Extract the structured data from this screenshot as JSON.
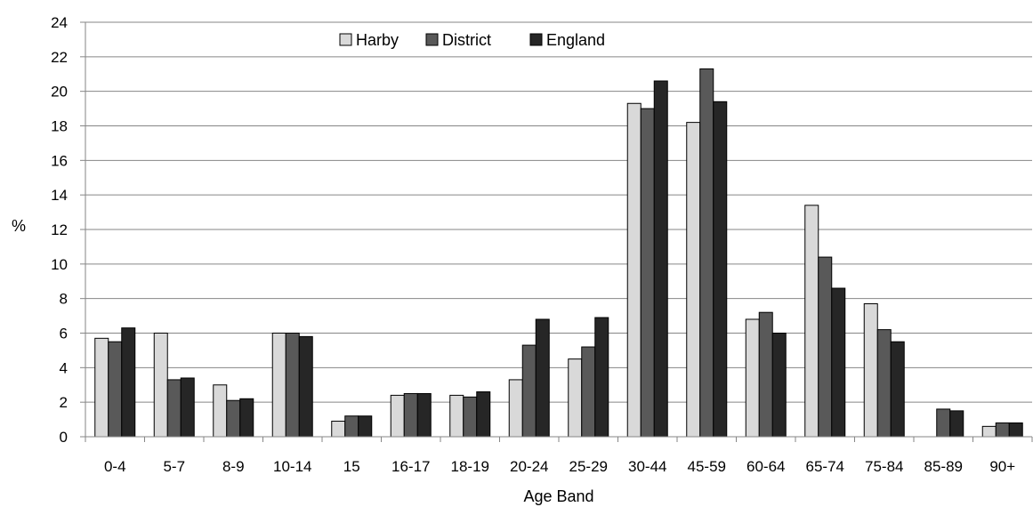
{
  "chart_data": {
    "type": "bar",
    "title": "",
    "xlabel": "Age Band",
    "ylabel": "%",
    "ylim": [
      0,
      24
    ],
    "yticks": [
      "0",
      "2",
      "4",
      "6",
      "8",
      "10",
      "12",
      "14",
      "16",
      "18",
      "20",
      "22",
      "24"
    ],
    "grid": "horizontal",
    "legend": "top-center",
    "categories": [
      "0-4",
      "5-7",
      "8-9",
      "10-14",
      "15",
      "16-17",
      "18-19",
      "20-24",
      "25-29",
      "30-44",
      "45-59",
      "60-64",
      "65-74",
      "75-84",
      "85-89",
      "90+"
    ],
    "series": [
      {
        "name": "Harby",
        "color": "#d9d9d9",
        "values": [
          5.7,
          6.0,
          3.0,
          6.0,
          0.9,
          2.4,
          2.4,
          3.3,
          4.5,
          19.3,
          18.2,
          6.8,
          13.4,
          7.7,
          0,
          0.6
        ]
      },
      {
        "name": "District",
        "color": "#595959",
        "values": [
          5.5,
          3.3,
          2.1,
          6.0,
          1.2,
          2.5,
          2.3,
          5.3,
          5.2,
          19.0,
          21.3,
          7.2,
          10.4,
          6.2,
          1.6,
          0.8
        ]
      },
      {
        "name": "England",
        "color": "#262626",
        "values": [
          6.3,
          3.4,
          2.2,
          5.8,
          1.2,
          2.5,
          2.6,
          6.8,
          6.9,
          20.6,
          19.4,
          6.0,
          8.6,
          5.5,
          1.5,
          0.8
        ]
      }
    ]
  }
}
